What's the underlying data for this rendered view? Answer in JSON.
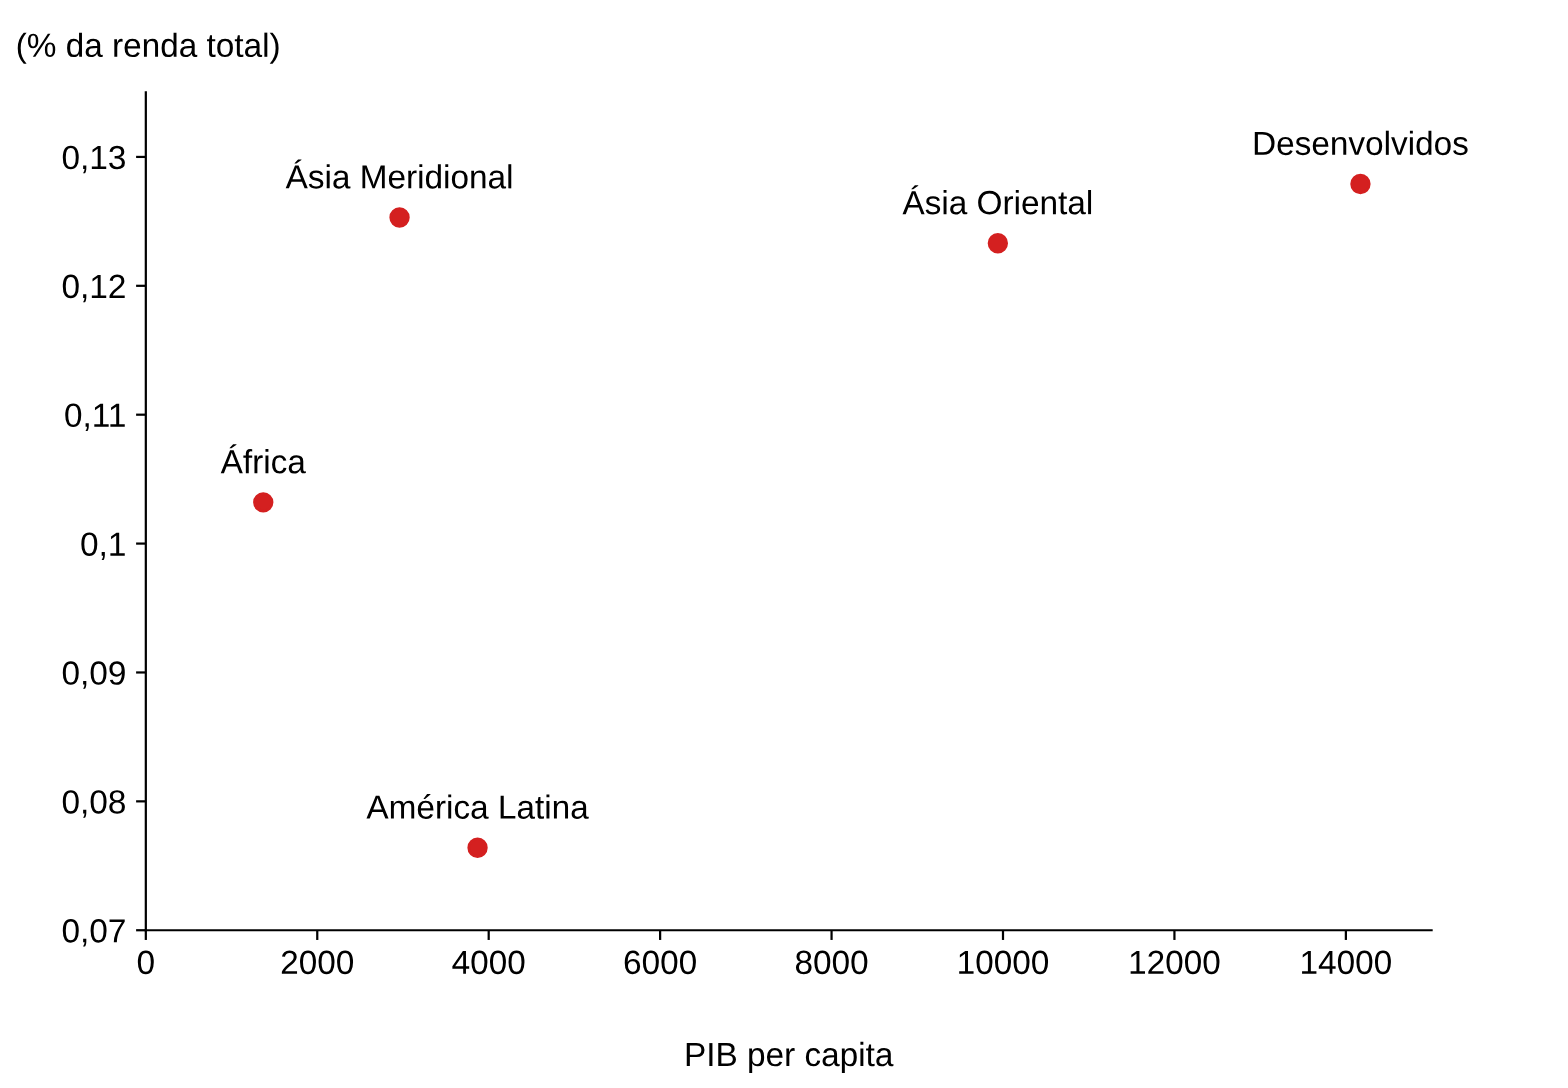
{
  "chart_data": {
    "type": "scatter",
    "ylabel": "(% da renda total)",
    "xlabel": "PIB per capita",
    "x": [
      2960,
      9940,
      14170,
      1370,
      3870
    ],
    "series": [
      {
        "color": "#d42020",
        "values": [
          0.1253,
          0.1233,
          0.1279,
          0.1032,
          0.0764
        ]
      }
    ],
    "annotations": [
      {
        "text": "Ásia Meridional",
        "x": 2960,
        "y": 0.1253
      },
      {
        "text": "Ásia Oriental",
        "x": 9940,
        "y": 0.1233
      },
      {
        "text": "Desenvolvidos",
        "x": 14170,
        "y": 0.1279
      },
      {
        "text": "África",
        "x": 1370,
        "y": 0.1032
      },
      {
        "text": "América Latina",
        "x": 3870,
        "y": 0.0764
      }
    ],
    "xlim": [
      0,
      15000
    ],
    "xticks": [
      0,
      2000,
      4000,
      6000,
      8000,
      10000,
      12000,
      14000
    ],
    "ylim": [
      0.07,
      0.135
    ],
    "yticks": [
      {
        "value": 0.07,
        "label": "0,07"
      },
      {
        "value": 0.08,
        "label": "0,08"
      },
      {
        "value": 0.09,
        "label": "0,09"
      },
      {
        "value": 0.1,
        "label": "0,1"
      },
      {
        "value": 0.11,
        "label": "0,11"
      },
      {
        "value": 0.12,
        "label": "0,12"
      },
      {
        "value": 0.13,
        "label": "0,13"
      }
    ],
    "marker": "circle",
    "grid": false,
    "legend": false
  }
}
